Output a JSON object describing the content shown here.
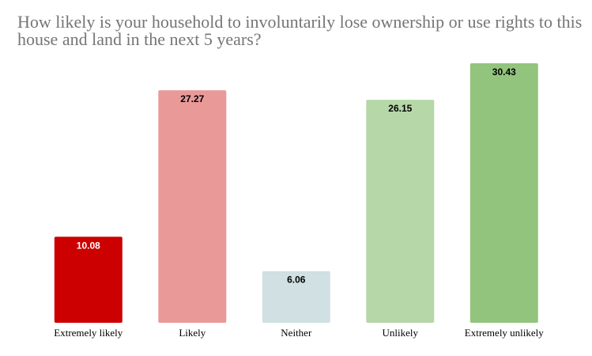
{
  "chart_data": {
    "type": "bar",
    "title": "How likely is your household to involuntarily lose ownership or use rights to this house and land in the next 5 years?",
    "xlabel": "",
    "ylabel": "",
    "categories": [
      "Extremely likely",
      "Likely",
      "Neither",
      "Unlikely",
      "Extremely unlikely"
    ],
    "values": [
      10.08,
      27.27,
      6.06,
      26.15,
      30.43
    ],
    "value_labels": [
      "10.08",
      "27.27",
      "6.06",
      "26.15",
      "30.43"
    ],
    "bar_colors": [
      "#cc0000",
      "#ea9999",
      "#d0e0e3",
      "#b6d7a8",
      "#93c47d"
    ],
    "value_label_colors": [
      "#ffffff",
      "#000000",
      "#000000",
      "#000000",
      "#000000"
    ],
    "ylim": [
      0,
      30.43
    ],
    "grid": false,
    "legend": "none"
  }
}
